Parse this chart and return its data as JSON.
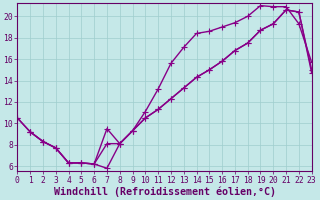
{
  "xlabel": "Windchill (Refroidissement éolien,°C)",
  "xlim": [
    0,
    23
  ],
  "ylim": [
    5.5,
    21.2
  ],
  "xticks": [
    0,
    1,
    2,
    3,
    4,
    5,
    6,
    7,
    8,
    9,
    10,
    11,
    12,
    13,
    14,
    15,
    16,
    17,
    18,
    19,
    20,
    21,
    22,
    23
  ],
  "yticks": [
    6,
    8,
    10,
    12,
    14,
    16,
    18,
    20
  ],
  "bg_color": "#c5e8e8",
  "grid_color": "#9fcece",
  "line_color": "#880088",
  "line1_x": [
    0,
    1,
    2,
    3,
    4,
    5,
    6,
    7,
    8,
    9,
    10,
    11,
    12,
    13,
    14,
    15,
    16,
    17,
    18,
    19,
    20,
    21,
    22,
    23
  ],
  "line1_y": [
    10.5,
    9.2,
    8.3,
    7.7,
    6.3,
    6.3,
    6.2,
    5.8,
    8.1,
    9.3,
    11.1,
    13.2,
    15.6,
    17.1,
    18.4,
    18.6,
    19.0,
    19.4,
    20.0,
    21.0,
    20.9,
    20.9,
    19.3,
    15.7
  ],
  "line2_x": [
    0,
    1,
    2,
    3,
    4,
    5,
    6,
    7,
    8,
    9,
    10,
    11,
    12,
    13,
    14,
    15,
    16,
    17,
    18,
    19,
    20,
    21,
    22,
    23
  ],
  "line2_y": [
    10.5,
    9.2,
    8.3,
    7.7,
    6.3,
    6.3,
    6.2,
    9.5,
    8.1,
    9.3,
    10.5,
    11.3,
    12.3,
    13.3,
    14.3,
    15.0,
    15.8,
    16.8,
    17.5,
    18.7,
    19.3,
    20.6,
    20.4,
    15.0
  ],
  "line3_x": [
    1,
    2,
    3,
    4,
    5,
    6,
    7,
    8,
    9,
    10,
    11,
    12,
    13,
    14,
    15,
    16,
    17,
    18,
    19,
    20,
    21,
    22,
    23
  ],
  "line3_y": [
    9.2,
    8.3,
    7.7,
    6.3,
    6.3,
    6.2,
    8.1,
    8.1,
    9.3,
    10.5,
    11.3,
    12.3,
    13.3,
    14.3,
    15.0,
    15.8,
    16.8,
    17.5,
    18.7,
    19.3,
    20.6,
    20.4,
    14.7
  ],
  "marker": "+",
  "markersize": 4,
  "linewidth": 1.0,
  "font_color": "#660066",
  "font_family": "monospace",
  "tick_fontsize": 5.8,
  "xlabel_fontsize": 7.2
}
